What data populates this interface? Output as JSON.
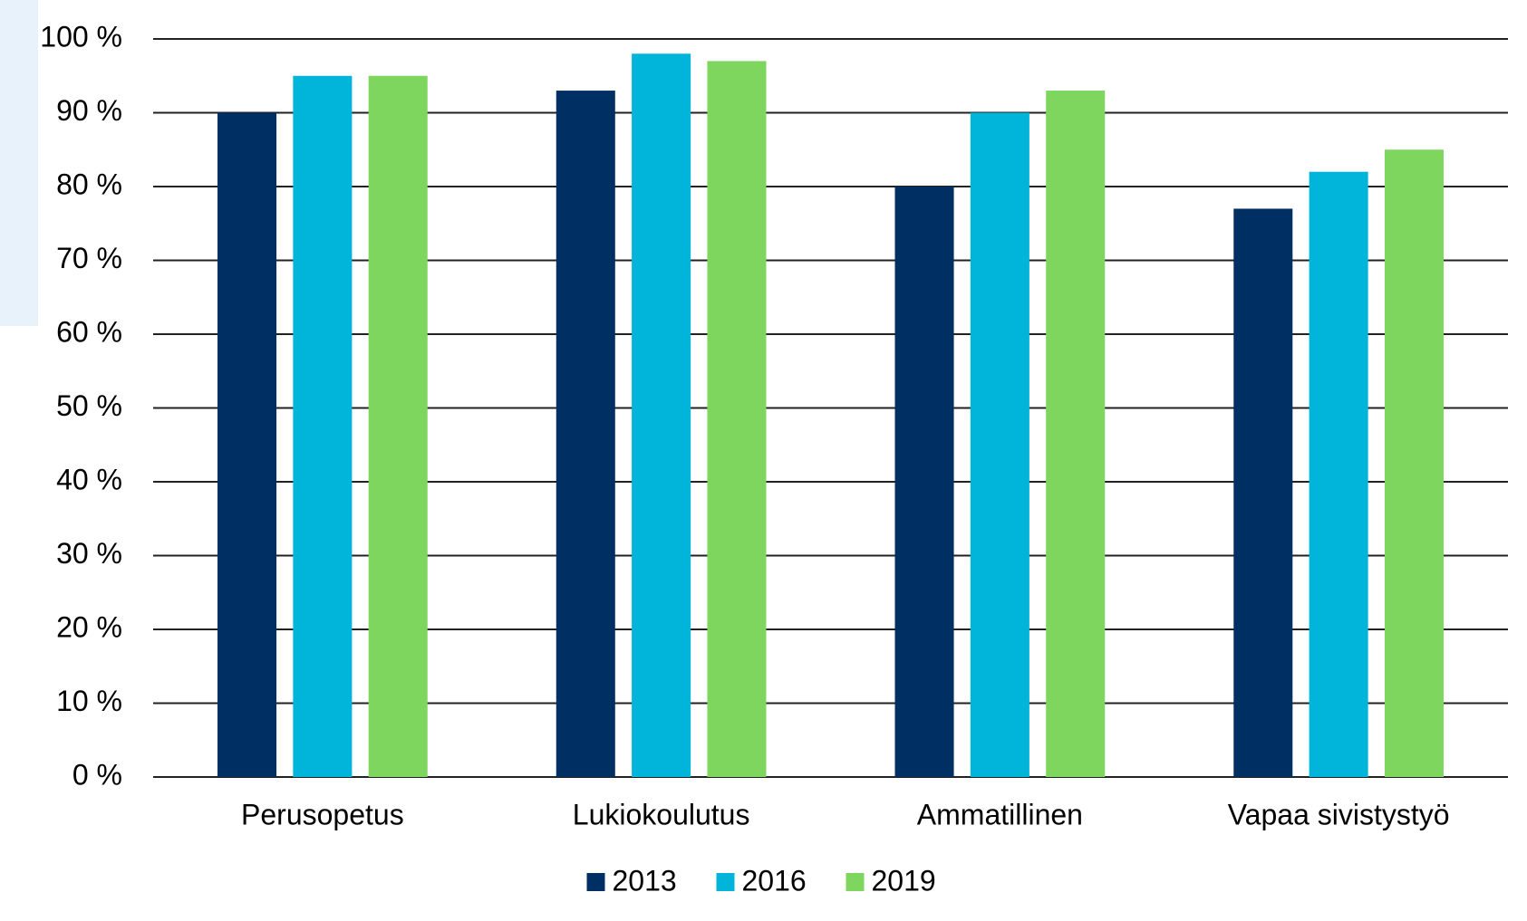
{
  "chart_data": {
    "type": "bar",
    "categories": [
      "Perusopetus",
      "Lukiokoulutus",
      "Ammatillinen",
      "Vapaa sivistystyö"
    ],
    "series": [
      {
        "name": "2013",
        "color": "#003063",
        "values": [
          90,
          93,
          80,
          77
        ]
      },
      {
        "name": "2016",
        "color": "#00b5d9",
        "values": [
          95,
          98,
          90,
          82
        ]
      },
      {
        "name": "2019",
        "color": "#7ed65e",
        "values": [
          95,
          97,
          93,
          85
        ]
      }
    ],
    "ylim": [
      0,
      100
    ],
    "yticks": [
      {
        "value": 0,
        "label": "0 %"
      },
      {
        "value": 10,
        "label": "10 %"
      },
      {
        "value": 20,
        "label": "20 %"
      },
      {
        "value": 30,
        "label": "30 %"
      },
      {
        "value": 40,
        "label": "40 %"
      },
      {
        "value": 50,
        "label": "50 %"
      },
      {
        "value": 60,
        "label": "60 %"
      },
      {
        "value": 70,
        "label": "70 %"
      },
      {
        "value": 80,
        "label": "80 %"
      },
      {
        "value": 90,
        "label": "90 %"
      },
      {
        "value": 100,
        "label": "100 %"
      }
    ],
    "grid": true,
    "legend": "bottom"
  }
}
